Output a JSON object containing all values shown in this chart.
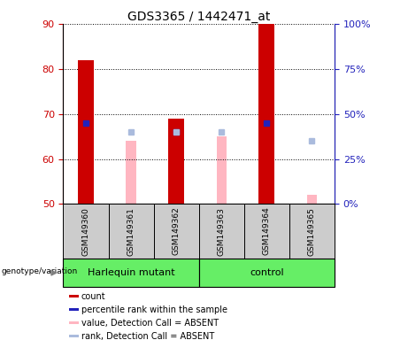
{
  "title": "GDS3365 / 1442471_at",
  "samples": [
    "GSM149360",
    "GSM149361",
    "GSM149362",
    "GSM149363",
    "GSM149364",
    "GSM149365"
  ],
  "group_labels": [
    "Harlequin mutant",
    "control"
  ],
  "ylim_left": [
    50,
    90
  ],
  "ylim_right": [
    0,
    100
  ],
  "yticks_left": [
    50,
    60,
    70,
    80,
    90
  ],
  "yticks_right": [
    0,
    25,
    50,
    75,
    100
  ],
  "ylabel_right_labels": [
    "0%",
    "25%",
    "50%",
    "75%",
    "100%"
  ],
  "count_values": [
    82,
    null,
    69,
    null,
    90,
    null
  ],
  "count_color": "#CC0000",
  "percentile_values": [
    68,
    null,
    66,
    null,
    68,
    null
  ],
  "percentile_color": "#2222BB",
  "absent_value_values": [
    null,
    64,
    66,
    65,
    null,
    52
  ],
  "absent_value_color": "#FFB6C1",
  "absent_rank_values": [
    null,
    66,
    66,
    66,
    null,
    64
  ],
  "absent_rank_color": "#AABBDD",
  "count_bar_width": 0.35,
  "absent_bar_width": 0.22,
  "marker_size": 5,
  "x_positions": [
    0,
    1,
    2,
    3,
    4,
    5
  ],
  "plot_bg_color": "#FFFFFF",
  "label_area_color": "#CCCCCC",
  "group_area_color": "#66EE66",
  "legend_items": [
    {
      "color": "#CC0000",
      "label": "count"
    },
    {
      "color": "#2222BB",
      "label": "percentile rank within the sample"
    },
    {
      "color": "#FFB6C1",
      "label": "value, Detection Call = ABSENT"
    },
    {
      "color": "#AABBDD",
      "label": "rank, Detection Call = ABSENT"
    }
  ]
}
